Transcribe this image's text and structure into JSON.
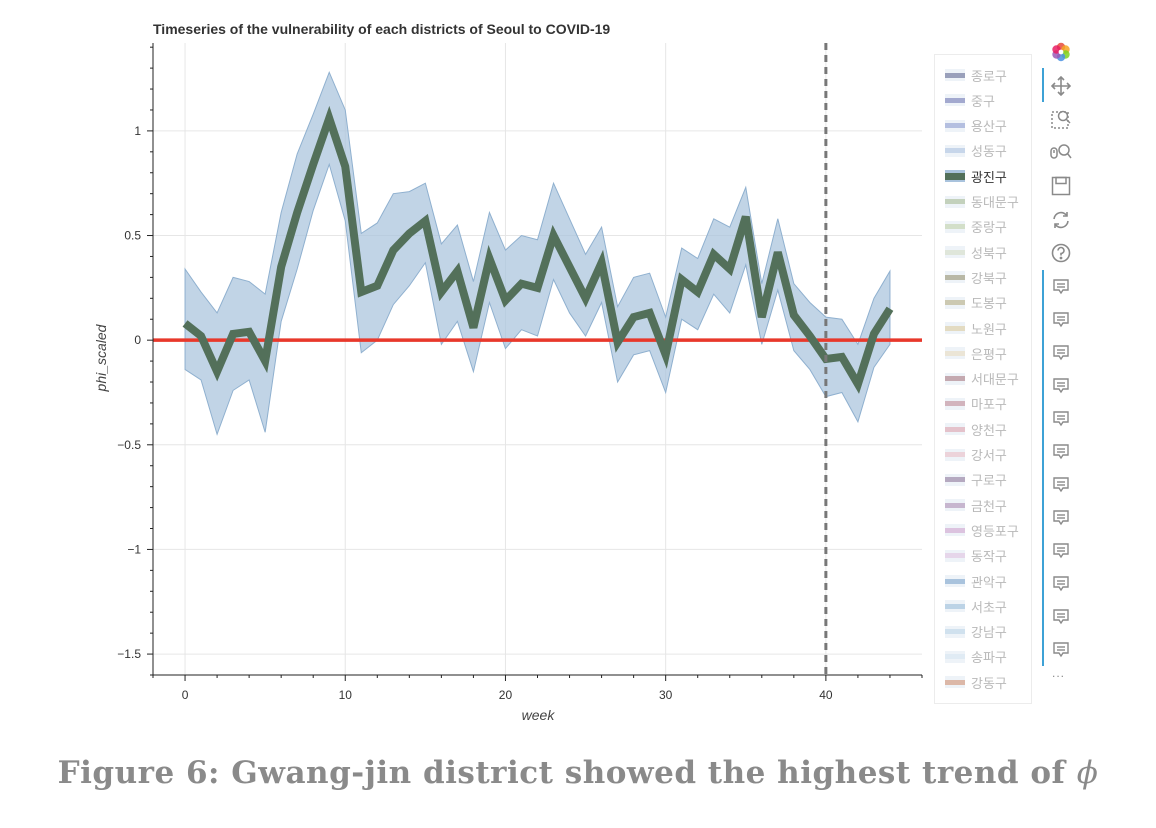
{
  "chart_data": {
    "type": "line",
    "title": "Timeseries of the vulnerability of each districts of Seoul to COVID-19",
    "xlabel": "week",
    "ylabel": "phi_scaled",
    "xlim": [
      -2,
      46
    ],
    "ylim": [
      -1.6,
      1.42
    ],
    "xticks": [
      0,
      10,
      20,
      30,
      40
    ],
    "yticks": [
      -1.5,
      -1,
      -0.5,
      0,
      0.5,
      1
    ],
    "ytick_labels": [
      "−1.5",
      "−1",
      "−0.5",
      "0",
      "0.5",
      "1"
    ],
    "grid": true,
    "horizontal_line": {
      "y": 0,
      "color": "#e8382b"
    },
    "vertical_line": {
      "x": 40,
      "color": "#777777",
      "style": "dashed"
    },
    "x": [
      0,
      1,
      2,
      3,
      4,
      5,
      6,
      7,
      8,
      9,
      10,
      11,
      12,
      13,
      14,
      15,
      16,
      17,
      18,
      19,
      20,
      21,
      22,
      23,
      24,
      25,
      26,
      27,
      28,
      29,
      30,
      31,
      32,
      33,
      34,
      35,
      36,
      37,
      38,
      39,
      40,
      41,
      42,
      43,
      44
    ],
    "series": [
      {
        "name": "광진구",
        "color": "#53705a",
        "band_color": "#a9c3dd",
        "values": [
          0.08,
          0.02,
          -0.15,
          0.03,
          0.04,
          -0.1,
          0.35,
          0.61,
          0.84,
          1.06,
          0.83,
          0.23,
          0.26,
          0.43,
          0.51,
          0.57,
          0.23,
          0.33,
          0.06,
          0.39,
          0.19,
          0.27,
          0.25,
          0.5,
          0.35,
          0.2,
          0.37,
          -0.01,
          0.11,
          0.13,
          -0.07,
          0.29,
          0.23,
          0.41,
          0.34,
          0.59,
          0.11,
          0.42,
          0.12,
          0.02,
          -0.09,
          -0.08,
          -0.21,
          0.03,
          0.15
        ],
        "lower": [
          -0.14,
          -0.19,
          -0.45,
          -0.24,
          -0.19,
          -0.44,
          0.09,
          0.34,
          0.62,
          0.84,
          0.57,
          -0.06,
          0.0,
          0.17,
          0.26,
          0.37,
          -0.02,
          0.09,
          -0.15,
          0.18,
          -0.04,
          0.05,
          0.02,
          0.29,
          0.13,
          0.02,
          0.18,
          -0.2,
          -0.07,
          -0.05,
          -0.25,
          0.1,
          0.05,
          0.22,
          0.13,
          0.36,
          -0.02,
          0.24,
          -0.05,
          -0.14,
          -0.27,
          -0.25,
          -0.39,
          -0.13,
          -0.02
        ],
        "upper": [
          0.34,
          0.23,
          0.13,
          0.3,
          0.28,
          0.22,
          0.61,
          0.89,
          1.08,
          1.28,
          1.1,
          0.51,
          0.56,
          0.7,
          0.71,
          0.75,
          0.46,
          0.55,
          0.28,
          0.61,
          0.43,
          0.5,
          0.48,
          0.75,
          0.58,
          0.41,
          0.54,
          0.16,
          0.3,
          0.32,
          0.11,
          0.44,
          0.39,
          0.58,
          0.54,
          0.73,
          0.27,
          0.58,
          0.27,
          0.18,
          0.11,
          0.1,
          -0.02,
          0.2,
          0.33
        ]
      }
    ]
  },
  "legend": {
    "items": [
      {
        "label": "종로구",
        "color": "#9aa0bb",
        "active": false
      },
      {
        "label": "중구",
        "color": "#a3a9cf",
        "active": false
      },
      {
        "label": "용산구",
        "color": "#b4bfe0",
        "active": false
      },
      {
        "label": "성동구",
        "color": "#c7d6ea",
        "active": false
      },
      {
        "label": "광진구",
        "color": "#53705a",
        "active": true
      },
      {
        "label": "동대문구",
        "color": "#c3d1bc",
        "active": false
      },
      {
        "label": "중랑구",
        "color": "#d3dfc9",
        "active": false
      },
      {
        "label": "성북구",
        "color": "#dfe6da",
        "active": false
      },
      {
        "label": "강북구",
        "color": "#b9b8a6",
        "active": false
      },
      {
        "label": "도봉구",
        "color": "#ccc9b2",
        "active": false
      },
      {
        "label": "노원구",
        "color": "#e3dbc2",
        "active": false
      },
      {
        "label": "은평구",
        "color": "#ebe5d6",
        "active": false
      },
      {
        "label": "서대문구",
        "color": "#c4a9b0",
        "active": false
      },
      {
        "label": "마포구",
        "color": "#d2b4bd",
        "active": false
      },
      {
        "label": "양천구",
        "color": "#e4c2cb",
        "active": false
      },
      {
        "label": "강서구",
        "color": "#ecd3da",
        "active": false
      },
      {
        "label": "구로구",
        "color": "#b5a9c0",
        "active": false
      },
      {
        "label": "금천구",
        "color": "#c7b6cf",
        "active": false
      },
      {
        "label": "영등포구",
        "color": "#dcc3df",
        "active": false
      },
      {
        "label": "동작구",
        "color": "#e6d6ea",
        "active": false
      },
      {
        "label": "관악구",
        "color": "#a9c3dd",
        "active": false
      },
      {
        "label": "서초구",
        "color": "#bcd3e6",
        "active": false
      },
      {
        "label": "강남구",
        "color": "#d0e1ee",
        "active": false
      },
      {
        "label": "송파구",
        "color": "#e0ebf4",
        "active": false
      },
      {
        "label": "강동구",
        "color": "#dcb8a8",
        "active": false
      }
    ]
  },
  "toolbar": {
    "tools": [
      "bokeh-logo-icon",
      "pan-icon",
      "box-zoom-icon",
      "wheel-zoom-icon",
      "save-icon",
      "reset-icon",
      "help-icon"
    ],
    "hover_tool_count": 12,
    "ellipsis": "..."
  },
  "caption": {
    "text": "Figure 6: Gwang-jin district showed the highest trend of",
    "symbol": "ϕ"
  }
}
